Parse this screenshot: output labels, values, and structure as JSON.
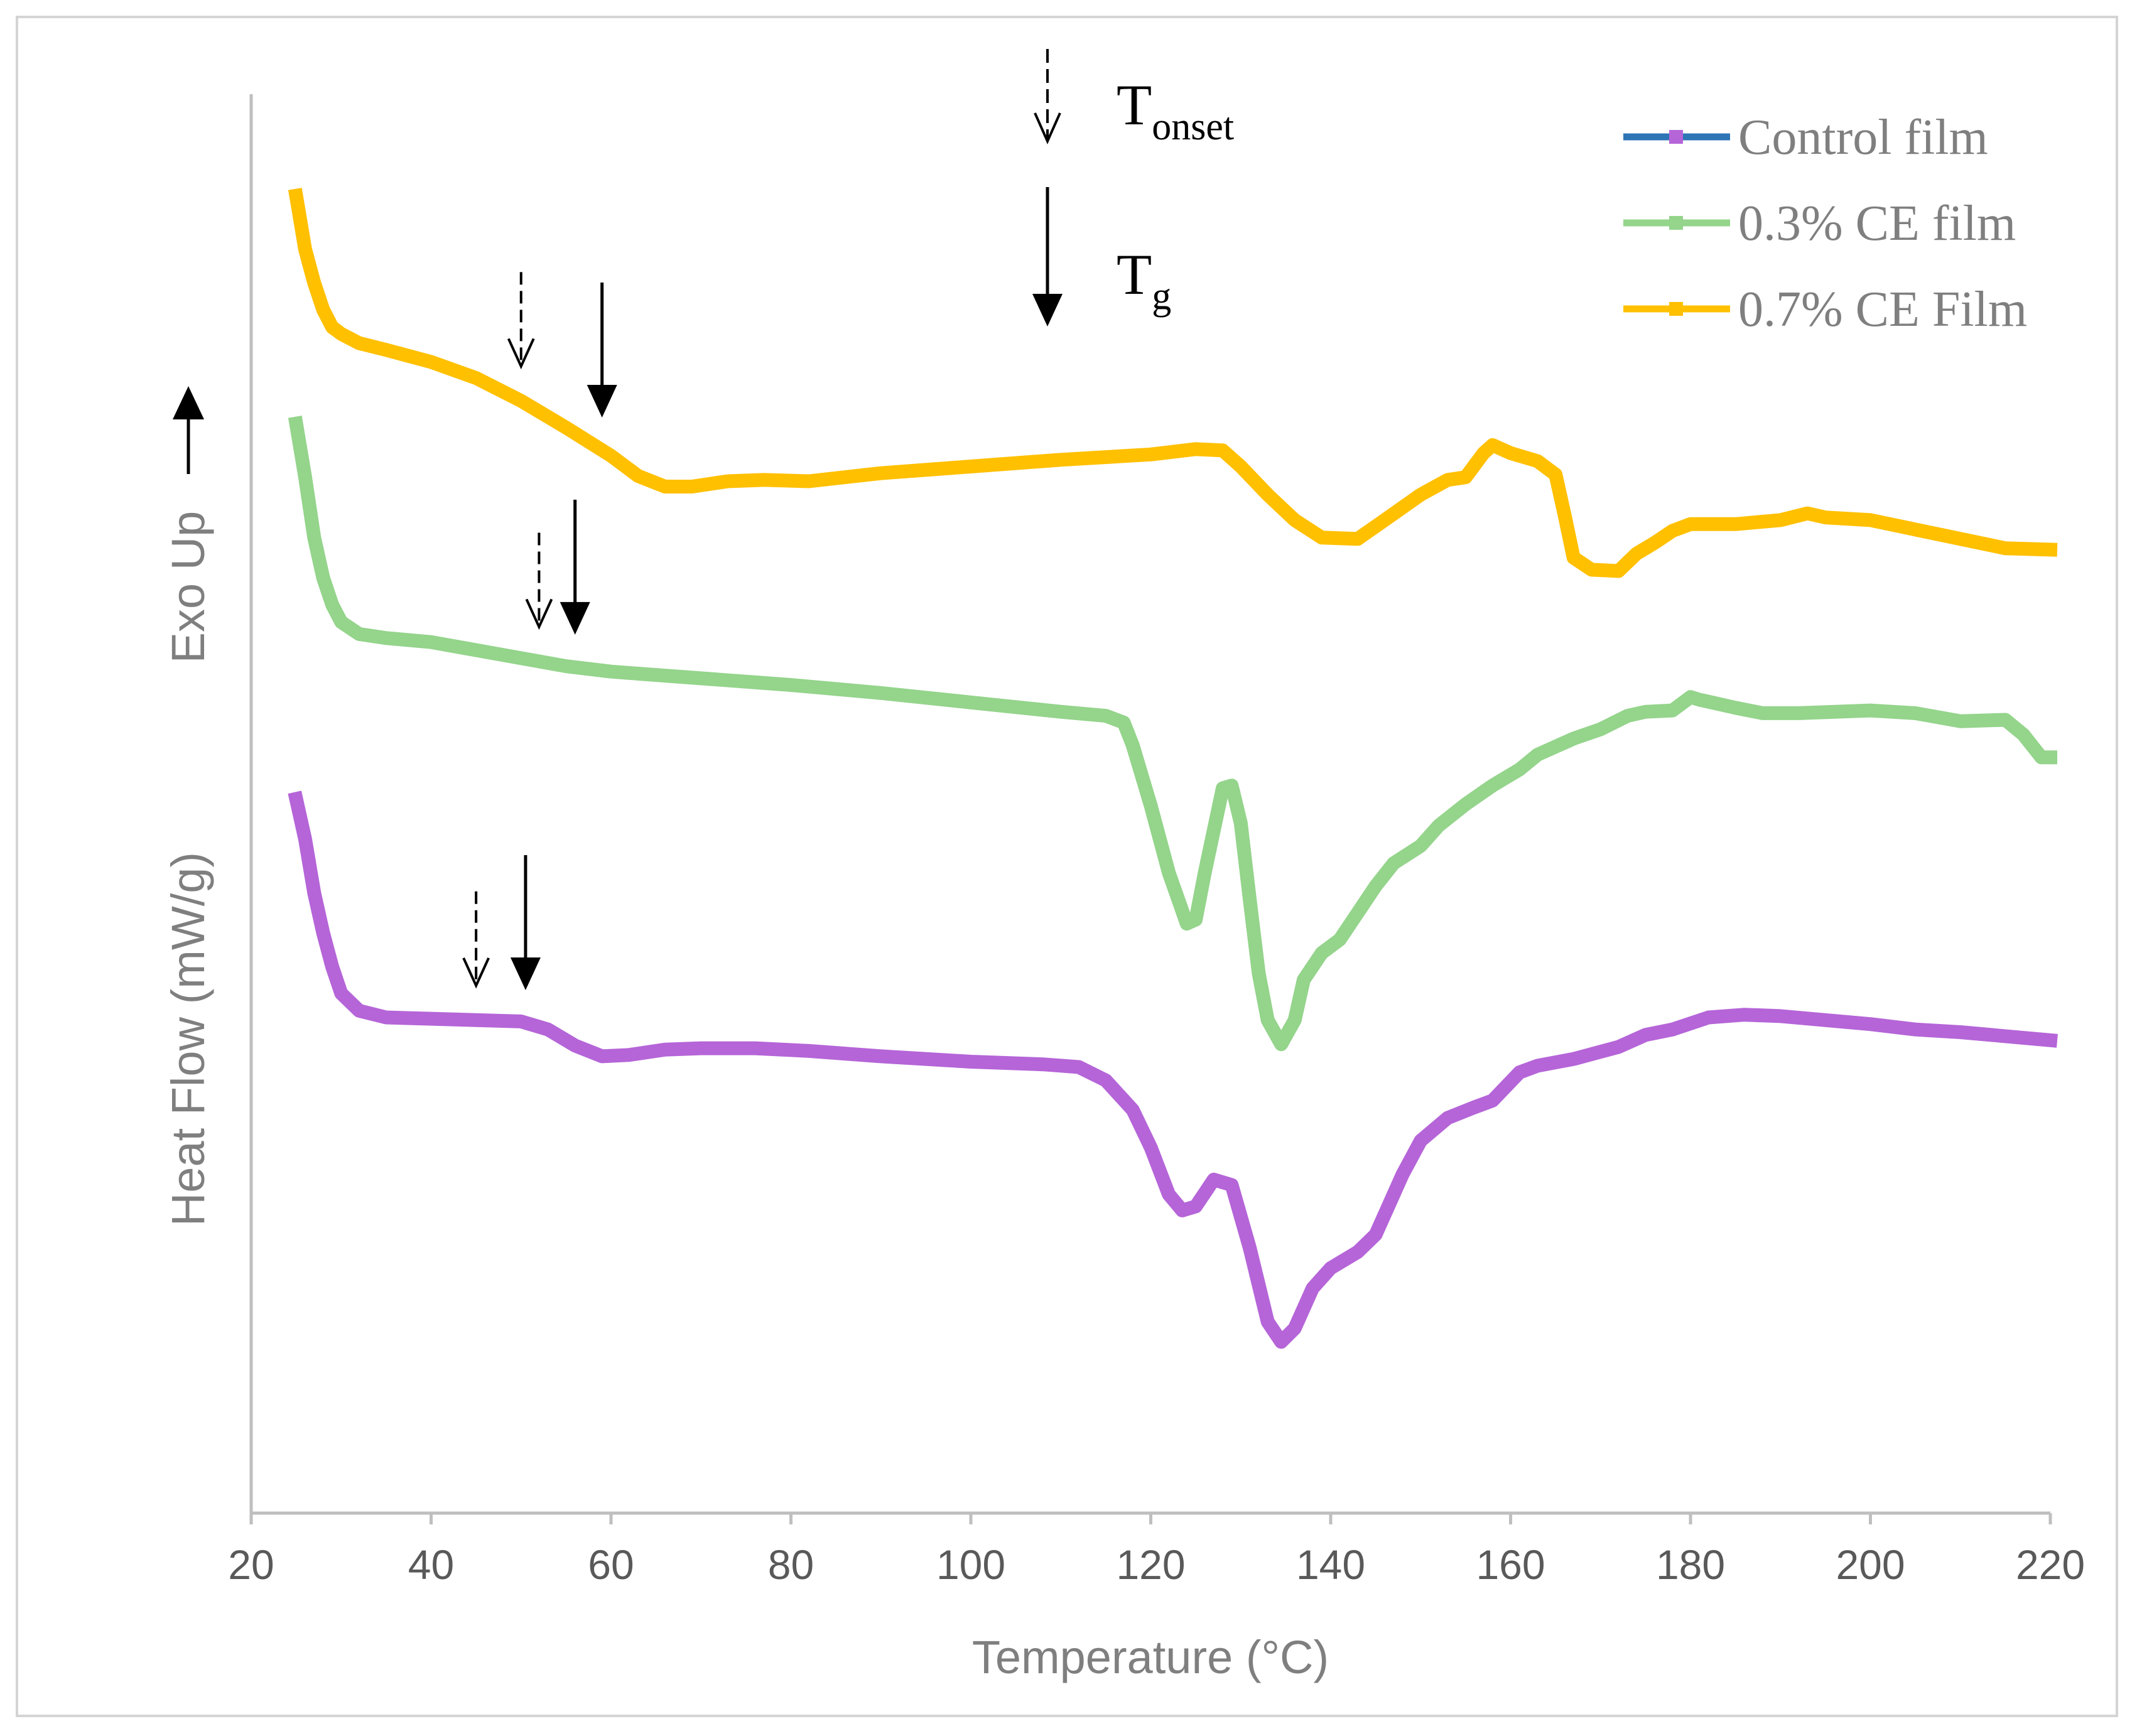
{
  "chart_data": {
    "type": "line",
    "title": "",
    "xlabel": "Temperature (°C)",
    "ylabel": "Heat Flow (mW/g)",
    "ylabel_secondary": "Exo Up",
    "xlim": [
      20,
      220
    ],
    "ylim": [
      0,
      100
    ],
    "x_ticks": [
      20,
      40,
      60,
      80,
      100,
      120,
      140,
      160,
      180,
      200,
      220
    ],
    "grid": false,
    "legend_position": "top-right",
    "series": [
      {
        "name": "Control film",
        "legend_color": "#2e75b6",
        "color": "#b565d8",
        "points": [
          [
            25,
            50
          ],
          [
            26,
            47
          ],
          [
            27,
            43
          ],
          [
            28,
            40
          ],
          [
            29,
            37.5
          ],
          [
            30,
            35.5
          ],
          [
            32,
            34.2
          ],
          [
            35,
            33.7
          ],
          [
            40,
            33.6
          ],
          [
            45,
            33.5
          ],
          [
            50,
            33.4
          ],
          [
            53,
            32.8
          ],
          [
            56,
            31.6
          ],
          [
            59,
            30.8
          ],
          [
            62,
            30.9
          ],
          [
            66,
            31.3
          ],
          [
            70,
            31.4
          ],
          [
            76,
            31.4
          ],
          [
            82,
            31.2
          ],
          [
            90,
            30.8
          ],
          [
            100,
            30.4
          ],
          [
            108,
            30.2
          ],
          [
            112,
            30.0
          ],
          [
            115,
            29.0
          ],
          [
            118,
            26.8
          ],
          [
            120,
            24.0
          ],
          [
            122,
            20.5
          ],
          [
            123.5,
            19.3
          ],
          [
            125,
            19.6
          ],
          [
            127,
            21.6
          ],
          [
            129,
            21.2
          ],
          [
            131,
            16.5
          ],
          [
            133,
            11.0
          ],
          [
            134.5,
            9.5
          ],
          [
            136,
            10.5
          ],
          [
            138,
            13.5
          ],
          [
            140,
            15.0
          ],
          [
            143,
            16.2
          ],
          [
            145,
            17.5
          ],
          [
            148,
            22.0
          ],
          [
            150,
            24.5
          ],
          [
            153,
            26.2
          ],
          [
            156,
            27.0
          ],
          [
            158,
            27.5
          ],
          [
            161,
            29.6
          ],
          [
            163,
            30.1
          ],
          [
            167,
            30.6
          ],
          [
            172,
            31.5
          ],
          [
            175,
            32.4
          ],
          [
            178,
            32.8
          ],
          [
            182,
            33.7
          ],
          [
            186,
            33.9
          ],
          [
            190,
            33.8
          ],
          [
            195,
            33.5
          ],
          [
            200,
            33.2
          ],
          [
            205,
            32.8
          ],
          [
            210,
            32.6
          ],
          [
            215,
            32.3
          ],
          [
            220,
            32.0
          ]
        ]
      },
      {
        "name": "0.3% CE film",
        "legend_color": "#94d48b",
        "color": "#94d48b",
        "points": [
          [
            25,
            78
          ],
          [
            26,
            74
          ],
          [
            27,
            69.5
          ],
          [
            28,
            66.5
          ],
          [
            29,
            64.5
          ],
          [
            30,
            63.2
          ],
          [
            32,
            62.3
          ],
          [
            35,
            62.0
          ],
          [
            40,
            61.7
          ],
          [
            45,
            61.1
          ],
          [
            50,
            60.5
          ],
          [
            55,
            59.9
          ],
          [
            60,
            59.5
          ],
          [
            70,
            59.0
          ],
          [
            80,
            58.5
          ],
          [
            90,
            57.9
          ],
          [
            100,
            57.2
          ],
          [
            110,
            56.5
          ],
          [
            115,
            56.2
          ],
          [
            117,
            55.7
          ],
          [
            118,
            54.0
          ],
          [
            120,
            49.5
          ],
          [
            122,
            44.5
          ],
          [
            124,
            40.7
          ],
          [
            125,
            41.0
          ],
          [
            126,
            44.5
          ],
          [
            128,
            50.8
          ],
          [
            129,
            51.0
          ],
          [
            130,
            48.2
          ],
          [
            131,
            42.5
          ],
          [
            132,
            37.0
          ],
          [
            133,
            33.5
          ],
          [
            134.5,
            31.7
          ],
          [
            136,
            33.5
          ],
          [
            137,
            36.5
          ],
          [
            139,
            38.5
          ],
          [
            141,
            39.5
          ],
          [
            143,
            41.5
          ],
          [
            145,
            43.5
          ],
          [
            147,
            45.2
          ],
          [
            150,
            46.5
          ],
          [
            152,
            48.0
          ],
          [
            155,
            49.6
          ],
          [
            158,
            51.0
          ],
          [
            161,
            52.2
          ],
          [
            163,
            53.3
          ],
          [
            167,
            54.5
          ],
          [
            170,
            55.2
          ],
          [
            173,
            56.2
          ],
          [
            175,
            56.5
          ],
          [
            178,
            56.6
          ],
          [
            180,
            57.6
          ],
          [
            181,
            57.4
          ],
          [
            183,
            57.1
          ],
          [
            185,
            56.8
          ],
          [
            188,
            56.4
          ],
          [
            192,
            56.4
          ],
          [
            196,
            56.5
          ],
          [
            200,
            56.6
          ],
          [
            205,
            56.4
          ],
          [
            210,
            55.8
          ],
          [
            215,
            55.9
          ],
          [
            217,
            54.8
          ],
          [
            219,
            53.1
          ],
          [
            220,
            53.1
          ]
        ]
      },
      {
        "name": "0.7% CE Film",
        "legend_color": "#ffc000",
        "color": "#ffc000",
        "points": [
          [
            25,
            95
          ],
          [
            26,
            91
          ],
          [
            27,
            88.5
          ],
          [
            28,
            86.5
          ],
          [
            29,
            85.2
          ],
          [
            30,
            84.7
          ],
          [
            32,
            84.0
          ],
          [
            35,
            83.5
          ],
          [
            40,
            82.6
          ],
          [
            45,
            81.4
          ],
          [
            50,
            79.7
          ],
          [
            55,
            77.7
          ],
          [
            60,
            75.6
          ],
          [
            63,
            74.1
          ],
          [
            66,
            73.3
          ],
          [
            69,
            73.3
          ],
          [
            73,
            73.7
          ],
          [
            77,
            73.8
          ],
          [
            82,
            73.7
          ],
          [
            90,
            74.3
          ],
          [
            100,
            74.8
          ],
          [
            110,
            75.3
          ],
          [
            120,
            75.7
          ],
          [
            125,
            76.1
          ],
          [
            128,
            76.0
          ],
          [
            130,
            74.8
          ],
          [
            133,
            72.7
          ],
          [
            136,
            70.8
          ],
          [
            139,
            69.5
          ],
          [
            143,
            69.4
          ],
          [
            146,
            70.8
          ],
          [
            150,
            72.7
          ],
          [
            153,
            73.8
          ],
          [
            155,
            74.0
          ],
          [
            157,
            75.8
          ],
          [
            158,
            76.4
          ],
          [
            160,
            75.8
          ],
          [
            163,
            75.2
          ],
          [
            165,
            74.2
          ],
          [
            166,
            71.2
          ],
          [
            167,
            68.0
          ],
          [
            169,
            67.1
          ],
          [
            172,
            67.0
          ],
          [
            174,
            68.3
          ],
          [
            176,
            69.1
          ],
          [
            178,
            70.0
          ],
          [
            180,
            70.5
          ],
          [
            185,
            70.5
          ],
          [
            190,
            70.8
          ],
          [
            193,
            71.3
          ],
          [
            195,
            71.0
          ],
          [
            200,
            70.8
          ],
          [
            205,
            70.1
          ],
          [
            210,
            69.4
          ],
          [
            215,
            68.7
          ],
          [
            220,
            68.6
          ]
        ]
      }
    ],
    "annotations": [
      {
        "name": "tonset-legend",
        "label": "T",
        "sub": "onset",
        "style": "dashed",
        "x": 108.5
      },
      {
        "name": "tg-legend",
        "label": "T",
        "sub": "g",
        "style": "solid",
        "x": 108.5
      },
      {
        "series": "0.7% CE Film",
        "type": "Tonset",
        "style": "dashed",
        "x": 50
      },
      {
        "series": "0.7% CE Film",
        "type": "Tg",
        "style": "solid",
        "x": 59
      },
      {
        "series": "0.3% CE film",
        "type": "Tonset",
        "style": "dashed",
        "x": 52
      },
      {
        "series": "0.3% CE film",
        "type": "Tg",
        "style": "solid",
        "x": 56
      },
      {
        "series": "Control film",
        "type": "Tonset",
        "style": "dashed",
        "x": 45
      },
      {
        "series": "Control film",
        "type": "Tg",
        "style": "solid",
        "x": 50.5
      }
    ]
  }
}
